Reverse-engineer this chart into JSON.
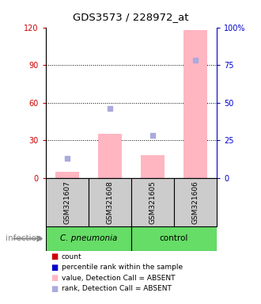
{
  "title": "GDS3573 / 228972_at",
  "samples": [
    "GSM321607",
    "GSM321608",
    "GSM321605",
    "GSM321606"
  ],
  "bar_values": [
    5,
    35,
    18,
    118
  ],
  "bar_color": "#ffb6c1",
  "rank_dots": [
    13,
    46,
    28,
    78
  ],
  "rank_dot_color_absent": "#aaaadd",
  "ylim_left": [
    0,
    120
  ],
  "ylim_right": [
    0,
    100
  ],
  "yticks_left": [
    0,
    30,
    60,
    90,
    120
  ],
  "yticks_right": [
    0,
    25,
    50,
    75,
    100
  ],
  "ytick_labels_right": [
    "0",
    "25",
    "50",
    "75",
    "100%"
  ],
  "left_axis_color": "#cc0000",
  "right_axis_color": "#0000cc",
  "group1_name": "C. pneumonia",
  "group2_name": "control",
  "group_color": "#66dd66",
  "sample_box_color": "#cccccc",
  "legend_colors": [
    "#cc0000",
    "#0000cc",
    "#ffb6c1",
    "#aaaadd"
  ],
  "legend_labels": [
    "count",
    "percentile rank within the sample",
    "value, Detection Call = ABSENT",
    "rank, Detection Call = ABSENT"
  ],
  "group_label": "infection"
}
